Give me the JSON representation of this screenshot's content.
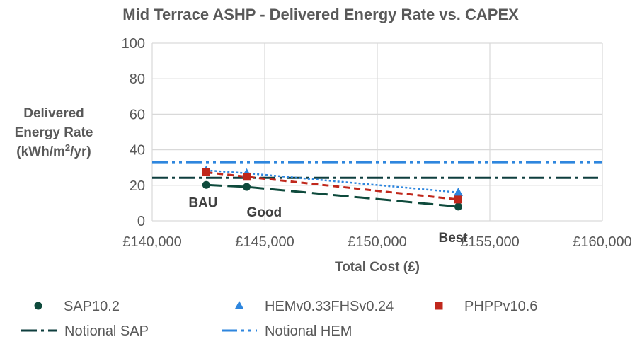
{
  "chart_data": {
    "type": "scatter",
    "title": "Mid Terrace ASHP - Delivered Energy Rate vs. CAPEX",
    "xlabel": "Total Cost (£)",
    "ylabel_lines": [
      "Delivered",
      "Energy Rate",
      "(kWh/m",
      "2",
      "/yr)"
    ],
    "xlim": [
      140000,
      160000
    ],
    "ylim": [
      0,
      100
    ],
    "x_ticks": [
      140000,
      145000,
      150000,
      155000,
      160000
    ],
    "x_tick_labels": [
      "£140,000",
      "£145,000",
      "£150,000",
      "£155,000",
      "£160,000"
    ],
    "y_ticks": [
      0,
      20,
      40,
      60,
      80,
      100
    ],
    "y_tick_labels": [
      "0",
      "20",
      "40",
      "60",
      "80",
      "100"
    ],
    "grid": true,
    "legend_position": "bottom",
    "series": [
      {
        "name": "SAP10.2",
        "marker": "circle",
        "color": "#0e4a3c",
        "line": "long-dash",
        "x": [
          142400,
          144200,
          153600
        ],
        "y": [
          20.2,
          19.1,
          8.0
        ]
      },
      {
        "name": "HEMv0.33FHSv0.24",
        "marker": "triangle",
        "color": "#2e86de",
        "line": "dotted",
        "x": [
          142400,
          144200,
          153600
        ],
        "y": [
          28.4,
          26.8,
          16.0
        ]
      },
      {
        "name": "PHPPv10.6",
        "marker": "square",
        "color": "#c0281c",
        "line": "dashed",
        "x": [
          142400,
          144200,
          153600
        ],
        "y": [
          27.3,
          24.8,
          12.0
        ]
      }
    ],
    "reference_lines": [
      {
        "name": "Notional SAP",
        "y": 24.2,
        "color": "#0e3e3e",
        "style": "dash-dot"
      },
      {
        "name": "Notional HEM",
        "y": 33.0,
        "color": "#2e86de",
        "style": "dash-dot-dot"
      }
    ],
    "annotations": [
      {
        "text": "BAU",
        "x": 142400
      },
      {
        "text": "Good",
        "x": 144200
      },
      {
        "text": "Best",
        "x": 153600
      }
    ]
  }
}
